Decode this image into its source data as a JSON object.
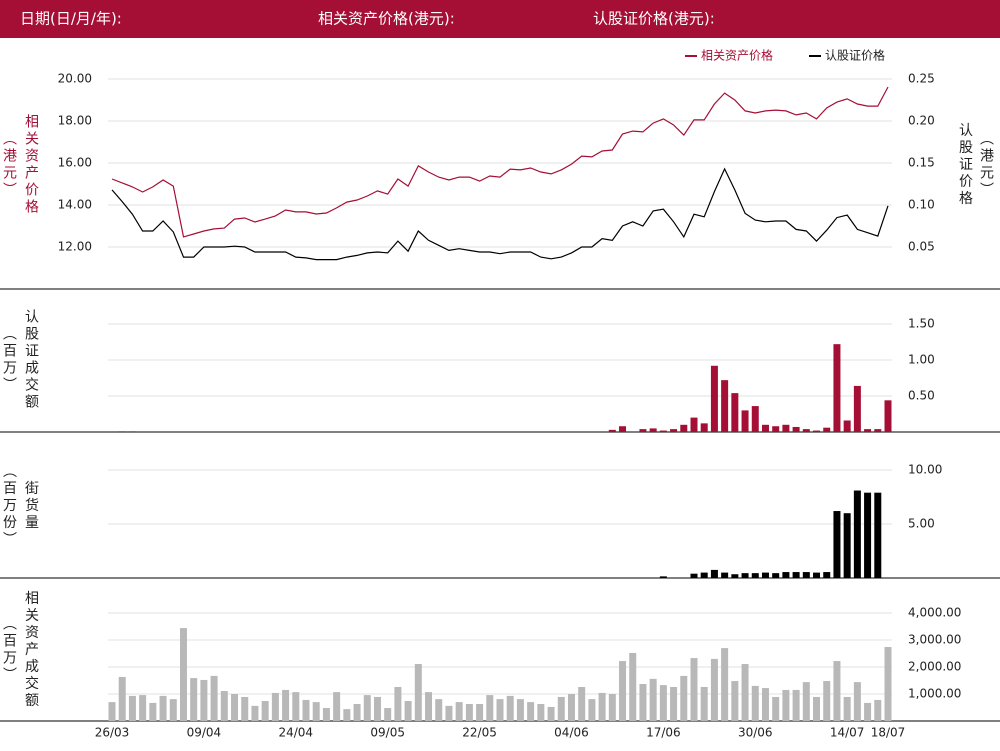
{
  "header": {
    "date_label": "日期(日/月/年):",
    "underlying_label": "相关资产价格(港元):",
    "warrant_label": "认股证价格(港元):"
  },
  "chart_data": [
    {
      "type": "line",
      "ylabel": "相关资产价格",
      "ylabel_unit": "（港元）",
      "y2label": "认股证价格",
      "y2label_unit": "（港元）",
      "categories": [
        "26/03",
        null,
        null,
        null,
        null,
        null,
        null,
        null,
        null,
        "09/04",
        null,
        null,
        null,
        null,
        null,
        null,
        null,
        null,
        "24/04",
        null,
        null,
        null,
        null,
        null,
        null,
        null,
        null,
        "09/05",
        null,
        null,
        null,
        null,
        null,
        null,
        null,
        null,
        "22/05",
        null,
        null,
        null,
        null,
        null,
        null,
        null,
        null,
        "04/06",
        null,
        null,
        null,
        null,
        null,
        null,
        null,
        null,
        "17/06",
        null,
        null,
        null,
        null,
        null,
        null,
        null,
        null,
        "30/06",
        null,
        null,
        null,
        null,
        null,
        null,
        null,
        null,
        "14/07",
        null,
        null,
        null,
        "18/07"
      ],
      "series": [
        {
          "name": "相关资产价格",
          "color": "#a50f35",
          "values": [
            15.24,
            15.05,
            14.86,
            14.62,
            14.86,
            15.19,
            14.9,
            12.48,
            12.62,
            12.76,
            12.86,
            12.9,
            13.33,
            13.38,
            13.19,
            13.33,
            13.48,
            13.76,
            13.67,
            13.67,
            13.57,
            13.62,
            13.86,
            14.14,
            14.24,
            14.43,
            14.67,
            14.52,
            15.24,
            14.9,
            15.86,
            15.57,
            15.33,
            15.19,
            15.33,
            15.33,
            15.14,
            15.38,
            15.33,
            15.71,
            15.67,
            15.76,
            15.57,
            15.48,
            15.67,
            15.95,
            16.33,
            16.29,
            16.57,
            16.62,
            17.38,
            17.52,
            17.48,
            17.9,
            18.1,
            17.81,
            17.33,
            18.05,
            18.05,
            18.81,
            19.33,
            19.0,
            18.48,
            18.38,
            18.48,
            18.52,
            18.48,
            18.29,
            18.38,
            18.1,
            18.62,
            18.9,
            19.05,
            18.81,
            18.71,
            18.71,
            19.62
          ]
        },
        {
          "name": "认股证价格",
          "color": "#000000",
          "axis": "y2",
          "values": [
            0.118,
            0.104,
            0.089,
            0.069,
            0.069,
            0.081,
            0.068,
            0.038,
            0.038,
            0.05,
            0.05,
            0.05,
            0.051,
            0.05,
            0.044,
            0.044,
            0.044,
            0.044,
            0.038,
            0.037,
            0.035,
            0.035,
            0.035,
            0.038,
            0.04,
            0.043,
            0.044,
            0.043,
            0.057,
            0.045,
            0.069,
            0.058,
            0.052,
            0.046,
            0.048,
            0.046,
            0.044,
            0.044,
            0.042,
            0.044,
            0.044,
            0.044,
            0.038,
            0.036,
            0.038,
            0.043,
            0.05,
            0.05,
            0.06,
            0.058,
            0.075,
            0.08,
            0.075,
            0.093,
            0.095,
            0.08,
            0.062,
            0.089,
            0.086,
            0.116,
            0.143,
            0.118,
            0.09,
            0.082,
            0.08,
            0.081,
            0.081,
            0.071,
            0.069,
            0.057,
            0.07,
            0.085,
            0.088,
            0.071,
            0.067,
            0.063,
            0.099
          ]
        }
      ],
      "ylim": [
        10,
        21
      ],
      "yticks": [
        {
          "value": 12,
          "label": "12.00"
        },
        {
          "value": 14,
          "label": "14.00"
        },
        {
          "value": 16,
          "label": "16.00"
        },
        {
          "value": 18,
          "label": "18.00"
        },
        {
          "value": 20,
          "label": "20.00"
        }
      ],
      "y2lim": [
        0,
        0.275
      ],
      "y2ticks": [
        {
          "value": 0.05,
          "label": "0.05"
        },
        {
          "value": 0.1,
          "label": "0.10"
        },
        {
          "value": 0.15,
          "label": "0.15"
        },
        {
          "value": 0.2,
          "label": "0.20"
        },
        {
          "value": 0.25,
          "label": "0.25"
        }
      ],
      "grid": true,
      "legend": "top-right"
    },
    {
      "type": "bar",
      "ylabel": "认股证成交额",
      "ylabel_unit": "（百万）",
      "color": "#a50f35",
      "values": [
        0,
        0.01,
        0.01,
        0,
        0,
        0,
        0,
        0,
        0,
        0,
        0,
        0,
        0,
        0,
        0,
        0,
        0,
        0,
        0,
        0,
        0,
        0,
        0,
        0,
        0,
        0,
        0,
        0,
        0,
        0,
        0,
        0,
        0,
        0,
        0,
        0,
        0,
        0,
        0,
        0,
        0,
        0,
        0,
        0,
        0,
        0,
        0,
        0,
        0,
        0.03,
        0.08,
        0,
        0.04,
        0.05,
        0.02,
        0.04,
        0.1,
        0.2,
        0.12,
        0.92,
        0.72,
        0.54,
        0.3,
        0.36,
        0.1,
        0.08,
        0.1,
        0.07,
        0.04,
        0.02,
        0.06,
        1.22,
        0.16,
        0.64,
        0.04,
        0.04,
        0.44
      ],
      "ylim": [
        0,
        1.5
      ],
      "yticks": [
        {
          "value": 0.5,
          "label": "0.50"
        },
        {
          "value": 1,
          "label": "1.00"
        },
        {
          "value": 1.5,
          "label": "1.50"
        }
      ],
      "grid": true
    },
    {
      "type": "bar",
      "ylabel": "街货量",
      "ylabel_unit": "（百万份）",
      "color": "#000000",
      "values": [
        0,
        0,
        0,
        0,
        0,
        0,
        0,
        0,
        0,
        0,
        0,
        0,
        0,
        0,
        0,
        0,
        0,
        0,
        0,
        0,
        0,
        0,
        0,
        0,
        0,
        0,
        0,
        0,
        0,
        0,
        0,
        0,
        0,
        0,
        0,
        0,
        0,
        0,
        0,
        0,
        0,
        0,
        0,
        0,
        0,
        0,
        0,
        0,
        0,
        0,
        0,
        0,
        0,
        0,
        0.15,
        0,
        0,
        0.4,
        0.5,
        0.75,
        0.5,
        0.35,
        0.45,
        0.45,
        0.5,
        0.45,
        0.55,
        0.55,
        0.55,
        0.5,
        0.55,
        6.2,
        6.0,
        8.1,
        7.9,
        7.9,
        0
      ],
      "ylim": [
        0,
        10
      ],
      "yticks": [
        {
          "value": 5,
          "label": "5.00"
        },
        {
          "value": 10,
          "label": "10.00"
        }
      ],
      "grid": true
    },
    {
      "type": "bar",
      "ylabel": "相关资产成交额",
      "ylabel_unit": "（百万）",
      "color": "#b8b8b8",
      "values": [
        700,
        1630,
        930,
        960,
        670,
        930,
        810,
        3440,
        1590,
        1520,
        1670,
        1110,
        1000,
        890,
        560,
        740,
        1040,
        1150,
        1070,
        780,
        700,
        480,
        1070,
        440,
        630,
        960,
        890,
        480,
        1260,
        740,
        2110,
        1070,
        810,
        560,
        700,
        630,
        630,
        960,
        810,
        930,
        810,
        700,
        630,
        520,
        890,
        1000,
        1260,
        810,
        1040,
        1000,
        2220,
        2520,
        1370,
        1560,
        1330,
        1260,
        1670,
        2330,
        1260,
        2300,
        2700,
        1480,
        2110,
        1300,
        1220,
        890,
        1150,
        1150,
        1440,
        890,
        1480,
        2220,
        890,
        1440,
        670,
        780,
        2740
      ],
      "ylim": [
        0,
        4000
      ],
      "yticks": [
        {
          "value": 1000,
          "label": "1,000.00"
        },
        {
          "value": 2000,
          "label": "2,000.00"
        },
        {
          "value": 3000,
          "label": "3,000.00"
        },
        {
          "value": 4000,
          "label": "4,000.00"
        }
      ],
      "grid": true
    }
  ]
}
